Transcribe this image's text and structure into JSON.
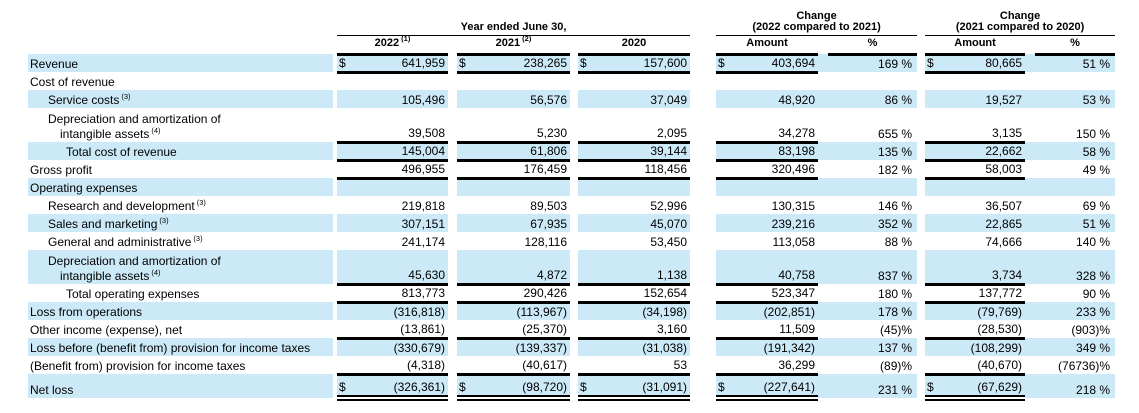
{
  "header": {
    "year_group": "Year ended June 30,",
    "change1_line1": "Change",
    "change1_line2": "(2022 compared to 2021)",
    "change2_line1": "Change",
    "change2_line2": "(2021 compared to 2020)",
    "col2022": "2022",
    "col2022_sup": "(1)",
    "col2021": "2021",
    "col2021_sup": "(2)",
    "col2020": "2020",
    "amount_label": "Amount",
    "percent_label": "%"
  },
  "table": {
    "currency_symbol": "$",
    "stripe_color": "#cce9f8",
    "columns": [
      "2022",
      "2021",
      "2020",
      "Change (2022 compared to 2021) Amount",
      "Change (2022 compared to 2021) %",
      "Change (2021 compared to 2020) Amount",
      "Change (2021 compared to 2020) %"
    ],
    "rows": [
      {
        "label": "Revenue",
        "indent": 0,
        "stripe": true,
        "dollar": true,
        "border": "thick",
        "cells": [
          "641,959",
          "238,265",
          "157,600",
          "403,694",
          "169 %",
          "80,665",
          "51 %"
        ]
      },
      {
        "label": "Cost of revenue",
        "indent": 0,
        "stripe": false,
        "dollar": false,
        "border": "none",
        "cells": [
          "",
          "",
          "",
          "",
          "",
          "",
          ""
        ]
      },
      {
        "label": "Service costs",
        "sup": "(3)",
        "indent": 1,
        "stripe": true,
        "dollar": false,
        "border": "none",
        "cells": [
          "105,496",
          "56,576",
          "37,049",
          "48,920",
          "86 %",
          "19,527",
          "53 %"
        ]
      },
      {
        "label": "Depreciation and amortization of",
        "label2": "intangible assets",
        "sup2": "(4)",
        "indent": 1,
        "stripe": false,
        "dollar": false,
        "border": "thick",
        "cells": [
          "39,508",
          "5,230",
          "2,095",
          "34,278",
          "655 %",
          "3,135",
          "150 %"
        ]
      },
      {
        "label": "Total cost of revenue",
        "indent": 2,
        "stripe": true,
        "dollar": false,
        "border": "thick",
        "cells": [
          "145,004",
          "61,806",
          "39,144",
          "83,198",
          "135 %",
          "22,662",
          "58 %"
        ]
      },
      {
        "label": "Gross profit",
        "indent": 0,
        "stripe": false,
        "dollar": false,
        "border": "thick",
        "cells": [
          "496,955",
          "176,459",
          "118,456",
          "320,496",
          "182 %",
          "58,003",
          "49 %"
        ]
      },
      {
        "label": "Operating expenses",
        "indent": 0,
        "stripe": true,
        "dollar": false,
        "border": "none",
        "cells": [
          "",
          "",
          "",
          "",
          "",
          "",
          ""
        ]
      },
      {
        "label": "Research and development",
        "sup": "(3)",
        "indent": 1,
        "stripe": false,
        "dollar": false,
        "border": "none",
        "cells": [
          "219,818",
          "89,503",
          "52,996",
          "130,315",
          "146 %",
          "36,507",
          "69 %"
        ]
      },
      {
        "label": "Sales and marketing",
        "sup": "(3)",
        "indent": 1,
        "stripe": true,
        "dollar": false,
        "border": "none",
        "cells": [
          "307,151",
          "67,935",
          "45,070",
          "239,216",
          "352 %",
          "22,865",
          "51 %"
        ]
      },
      {
        "label": "General and administrative",
        "sup": "(3)",
        "indent": 1,
        "stripe": false,
        "dollar": false,
        "border": "none",
        "cells": [
          "241,174",
          "128,116",
          "53,450",
          "113,058",
          "88 %",
          "74,666",
          "140 %"
        ]
      },
      {
        "label": "Depreciation and amortization of",
        "label2": "intangible assets",
        "sup2": "(4)",
        "indent": 1,
        "stripe": true,
        "dollar": false,
        "border": "thick",
        "cells": [
          "45,630",
          "4,872",
          "1,138",
          "40,758",
          "837 %",
          "3,734",
          "328 %"
        ]
      },
      {
        "label": "Total operating expenses",
        "indent": 2,
        "stripe": false,
        "dollar": false,
        "border": "thick",
        "cells": [
          "813,773",
          "290,426",
          "152,654",
          "523,347",
          "180 %",
          "137,772",
          "90 %"
        ]
      },
      {
        "label": "Loss from operations",
        "indent": 0,
        "stripe": true,
        "dollar": false,
        "border": "none",
        "cells": [
          "(316,818)",
          "(113,967)",
          "(34,198)",
          "(202,851)",
          "178 %",
          "(79,769)",
          "233 %"
        ]
      },
      {
        "label": "Other income (expense), net",
        "indent": 0,
        "stripe": false,
        "dollar": false,
        "border": "thick",
        "cells": [
          "(13,861)",
          "(25,370)",
          "3,160",
          "11,509",
          "(45)%",
          "(28,530)",
          "(903)%"
        ]
      },
      {
        "label": "Loss before (benefit from) provision for income taxes",
        "indent": 0,
        "stripe": true,
        "dollar": false,
        "border": "none",
        "cells": [
          "(330,679)",
          "(139,337)",
          "(31,038)",
          "(191,342)",
          "137 %",
          "(108,299)",
          "349 %"
        ]
      },
      {
        "label": "(Benefit from) provision for income taxes",
        "indent": 0,
        "stripe": false,
        "dollar": false,
        "border": "thick",
        "cells": [
          "(4,318)",
          "(40,617)",
          "53",
          "36,299",
          "(89)%",
          "(40,670)",
          "(76736)%"
        ]
      },
      {
        "label": "Net loss",
        "indent": 0,
        "stripe": true,
        "dollar": true,
        "border": "double",
        "cells": [
          "(326,361)",
          "(98,720)",
          "(31,091)",
          "(227,641)",
          "231 %",
          "(67,629)",
          "218 %"
        ]
      }
    ]
  }
}
